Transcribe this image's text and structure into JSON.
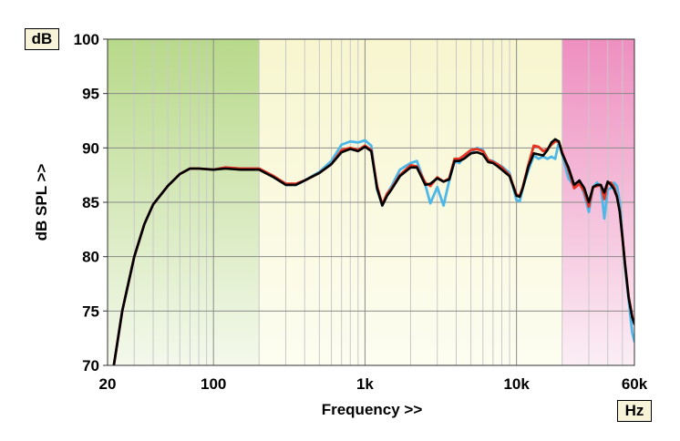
{
  "chart_data": {
    "type": "line",
    "title": "",
    "xlabel": "Frequency >>",
    "ylabel": "dB SPL >>",
    "y_unit": "dB",
    "x_unit": "Hz",
    "xscale": "log",
    "xlim": [
      20,
      60000
    ],
    "ylim": [
      70,
      100
    ],
    "y_ticks": [
      70,
      75,
      80,
      85,
      90,
      95,
      100
    ],
    "x_ticks": [
      {
        "value": 20,
        "label": "20"
      },
      {
        "value": 100,
        "label": "100"
      },
      {
        "value": 1000,
        "label": "1k"
      },
      {
        "value": 10000,
        "label": "10k"
      },
      {
        "value": 60000,
        "label": "60k"
      }
    ],
    "grid": true,
    "bands": [
      {
        "from": 20,
        "to": 200,
        "color": "#b8d98a"
      },
      {
        "from": 200,
        "to": 20000,
        "color": "#f7f6cf"
      },
      {
        "from": 20000,
        "to": 60000,
        "color": "#ee8fc0"
      }
    ],
    "series": [
      {
        "color": "#4db8e8",
        "x": [
          22,
          25,
          30,
          35,
          40,
          50,
          60,
          70,
          80,
          100,
          120,
          150,
          200,
          250,
          300,
          350,
          400,
          500,
          600,
          700,
          800,
          900,
          1000,
          1100,
          1200,
          1300,
          1400,
          1500,
          1700,
          2000,
          2200,
          2500,
          2700,
          3000,
          3300,
          3600,
          3900,
          4200,
          4500,
          5000,
          5500,
          6000,
          6500,
          7000,
          7500,
          8000,
          9000,
          10000,
          10500,
          11000,
          12000,
          13000,
          14000,
          15000,
          16000,
          17000,
          18000,
          19000,
          20000,
          22000,
          24000,
          26000,
          28000,
          30000,
          32000,
          34000,
          36000,
          38000,
          40000,
          42000,
          44000,
          46000,
          48000,
          50000,
          52000,
          55000,
          58000,
          60000
        ],
        "y": [
          70,
          75,
          80,
          83,
          84.8,
          86.5,
          87.6,
          88.1,
          88.1,
          88.0,
          88.2,
          88.1,
          88.1,
          87.4,
          86.6,
          86.6,
          87.0,
          87.8,
          88.8,
          90.3,
          90.6,
          90.5,
          90.7,
          90.2,
          86.2,
          84.7,
          85.8,
          86.5,
          88.0,
          88.6,
          88.8,
          86.6,
          84.9,
          86.4,
          84.7,
          87.0,
          88.8,
          88.6,
          89.2,
          89.6,
          90.0,
          89.8,
          88.9,
          88.8,
          88.5,
          88.3,
          87.7,
          85.2,
          85.1,
          86.3,
          88.0,
          89.3,
          89.0,
          89.2,
          89.0,
          89.2,
          89.0,
          90.5,
          89.4,
          87.2,
          86.5,
          87.0,
          85.7,
          84.1,
          86.4,
          86.8,
          86.5,
          83.5,
          86.2,
          86.3,
          86.8,
          86.5,
          85.0,
          82.0,
          79.0,
          76.0,
          73.0,
          72.2
        ]
      },
      {
        "color": "#e63322",
        "x": [
          22,
          25,
          30,
          35,
          40,
          50,
          60,
          70,
          80,
          100,
          120,
          150,
          200,
          250,
          300,
          350,
          400,
          500,
          600,
          700,
          800,
          900,
          1000,
          1100,
          1200,
          1300,
          1400,
          1500,
          1700,
          2000,
          2200,
          2500,
          2700,
          3000,
          3300,
          3600,
          3900,
          4200,
          4500,
          5000,
          5500,
          6000,
          6500,
          7000,
          7500,
          8000,
          9000,
          10000,
          10500,
          11000,
          12000,
          13000,
          14000,
          15000,
          16000,
          17000,
          18000,
          19000,
          20000,
          22000,
          24000,
          26000,
          28000,
          30000,
          32000,
          34000,
          36000,
          38000,
          40000,
          42000,
          44000,
          46000,
          48000,
          50000,
          52000,
          55000,
          58000,
          60000
        ],
        "y": [
          70,
          75,
          80,
          83,
          84.8,
          86.5,
          87.6,
          88.1,
          88.1,
          88.0,
          88.2,
          88.1,
          88.1,
          87.4,
          86.7,
          86.7,
          87.0,
          87.7,
          88.5,
          89.8,
          90.0,
          89.8,
          90.2,
          89.8,
          86.5,
          84.8,
          85.8,
          86.3,
          87.5,
          88.4,
          88.3,
          86.8,
          86.5,
          87.3,
          86.9,
          87.2,
          89.0,
          89.0,
          89.3,
          89.8,
          89.9,
          89.7,
          88.9,
          88.7,
          88.5,
          88.2,
          87.5,
          85.7,
          85.6,
          86.4,
          88.5,
          90.2,
          90.1,
          89.7,
          89.9,
          90.3,
          90.6,
          90.6,
          89.6,
          88.0,
          86.3,
          86.7,
          86.0,
          84.6,
          86.4,
          86.5,
          86.6,
          85.3,
          86.8,
          86.8,
          86.4,
          85.6,
          84.2,
          81.8,
          79.3,
          76.3,
          74.5,
          73.9
        ]
      },
      {
        "color": "#000000",
        "x": [
          22,
          25,
          30,
          35,
          40,
          50,
          60,
          70,
          80,
          100,
          120,
          150,
          200,
          250,
          300,
          350,
          400,
          500,
          600,
          700,
          800,
          900,
          1000,
          1100,
          1200,
          1300,
          1400,
          1500,
          1700,
          2000,
          2200,
          2500,
          2700,
          3000,
          3300,
          3600,
          3900,
          4200,
          4500,
          5000,
          5500,
          6000,
          6500,
          7000,
          7500,
          8000,
          9000,
          10000,
          10500,
          11000,
          12000,
          13000,
          14000,
          15000,
          16000,
          17000,
          18000,
          19000,
          20000,
          22000,
          24000,
          26000,
          28000,
          30000,
          32000,
          34000,
          36000,
          38000,
          40000,
          42000,
          44000,
          46000,
          48000,
          50000,
          52000,
          55000,
          58000,
          60000
        ],
        "y": [
          70,
          75,
          80,
          83,
          84.8,
          86.5,
          87.6,
          88.1,
          88.1,
          88.0,
          88.1,
          88.0,
          88.0,
          87.3,
          86.6,
          86.6,
          87.0,
          87.7,
          88.5,
          89.6,
          89.9,
          89.7,
          90.1,
          89.7,
          86.3,
          84.7,
          85.6,
          86.2,
          87.4,
          88.2,
          88.2,
          86.6,
          86.7,
          87.2,
          86.9,
          87.1,
          88.8,
          88.8,
          89.0,
          89.5,
          89.6,
          89.4,
          88.7,
          88.6,
          88.3,
          88.0,
          87.4,
          85.6,
          85.5,
          86.3,
          88.3,
          89.5,
          89.4,
          89.3,
          89.8,
          90.5,
          90.8,
          90.6,
          89.5,
          88.2,
          86.6,
          87.0,
          86.3,
          85.0,
          86.4,
          86.6,
          86.6,
          85.9,
          86.9,
          86.6,
          86.2,
          85.5,
          84.1,
          81.8,
          79.3,
          76.2,
          74.4,
          73.8
        ]
      }
    ]
  }
}
